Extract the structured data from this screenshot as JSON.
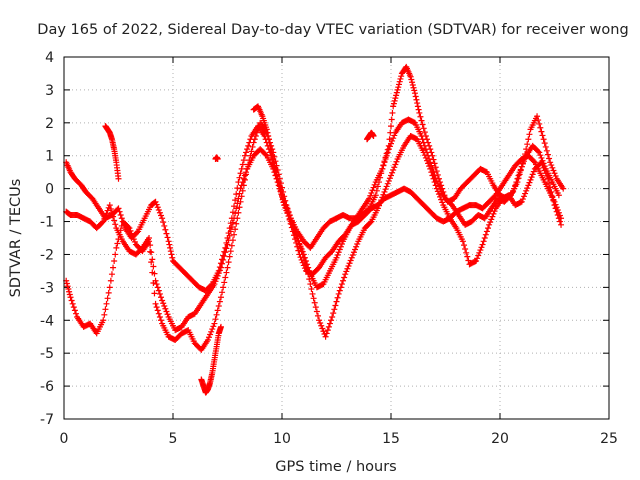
{
  "chart_data": {
    "type": "scatter",
    "title": "Day 165 of 2022, Sidereal Day-to-day VTEC variation (SDTVAR) for receiver wong",
    "xlabel": "GPS time / hours",
    "ylabel": "SDTVAR / TECUs",
    "xlim": [
      0,
      25
    ],
    "ylim": [
      -7,
      4
    ],
    "xticks": [
      "0",
      "5",
      "10",
      "15",
      "20",
      "25"
    ],
    "yticks": [
      "4",
      "3",
      "2",
      "1",
      "0",
      "-1",
      "-2",
      "-3",
      "-4",
      "-5",
      "-6",
      "-7"
    ],
    "grid": true,
    "marker": "+",
    "color": "#ff0000",
    "series": [
      {
        "x": [
          0.1,
          0.3,
          0.5,
          0.8,
          1.0,
          1.3,
          1.6,
          1.9,
          2.2,
          2.5,
          2.8,
          3.1,
          3.4,
          3.7,
          4.0,
          4.2,
          4.5,
          4.8,
          5.0,
          5.3,
          5.6,
          5.9,
          6.2,
          6.5,
          6.8,
          7.1,
          7.4,
          7.7,
          8.0,
          8.3,
          8.6,
          8.9,
          9.2,
          9.5,
          9.8,
          10.1,
          10.4,
          10.7,
          11.0,
          11.3,
          11.6,
          11.9,
          12.2,
          12.5,
          12.8,
          13.1,
          13.4,
          13.7,
          14.0,
          14.3,
          14.6,
          14.9,
          15.2,
          15.5,
          15.8,
          16.1,
          16.4,
          16.7,
          17.0,
          17.3,
          17.6,
          17.9,
          18.2,
          18.5,
          18.8,
          19.1,
          19.4,
          19.7,
          20.0,
          20.3,
          20.6,
          20.9,
          21.2,
          21.5,
          21.8,
          22.1,
          22.4,
          22.7
        ],
        "y": [
          0.8,
          0.5,
          0.3,
          0.1,
          -0.1,
          -0.3,
          -0.6,
          -0.9,
          -0.8,
          -0.6,
          -1.2,
          -1.5,
          -1.3,
          -0.9,
          -0.5,
          -0.4,
          -0.9,
          -1.6,
          -2.2,
          -2.4,
          -2.6,
          -2.8,
          -3.0,
          -3.1,
          -2.9,
          -2.5,
          -1.8,
          -0.9,
          0.2,
          1.0,
          1.6,
          1.9,
          1.6,
          1.0,
          0.3,
          -0.4,
          -0.9,
          -1.3,
          -1.6,
          -1.8,
          -1.5,
          -1.2,
          -1.0,
          -0.9,
          -0.8,
          -0.9,
          -0.9,
          -0.6,
          -0.3,
          0.2,
          0.6,
          1.2,
          1.7,
          2.0,
          2.1,
          2.0,
          1.6,
          1.0,
          0.4,
          -0.1,
          -0.4,
          -0.3,
          0.0,
          0.2,
          0.4,
          0.6,
          0.5,
          0.1,
          -0.2,
          -0.3,
          -0.1,
          0.5,
          1.0,
          1.3,
          1.1,
          0.6,
          0.2,
          -0.2
        ]
      },
      {
        "x": [
          0.1,
          0.3,
          0.6,
          0.9,
          1.2,
          1.5,
          1.8,
          2.1,
          2.4,
          2.7,
          3.0,
          3.3,
          3.6,
          3.9,
          4.2,
          4.5,
          4.8,
          5.1,
          5.4,
          5.7,
          6.0,
          6.3,
          6.6,
          6.9,
          7.2,
          7.5,
          7.8,
          8.1,
          8.4,
          8.7,
          9.0,
          9.3,
          9.6,
          9.9,
          10.2,
          10.5,
          10.8,
          11.1,
          11.4,
          11.7,
          12.0,
          12.3,
          12.6,
          12.9,
          13.2,
          13.5,
          13.8,
          14.1,
          14.4,
          14.7,
          15.0,
          15.3,
          15.6,
          15.9,
          16.2,
          16.5,
          16.8,
          17.1,
          17.4,
          17.7,
          18.0,
          18.3,
          18.6,
          18.9,
          19.2,
          19.5,
          19.8,
          20.1,
          20.4,
          20.7,
          21.0,
          21.3,
          21.6,
          21.9,
          22.2,
          22.5,
          22.8
        ],
        "y": [
          -0.7,
          -0.8,
          -0.8,
          -0.9,
          -1.0,
          -1.2,
          -1.0,
          -0.5,
          -1.2,
          -1.6,
          -1.9,
          -2.0,
          -1.8,
          -1.5,
          -2.8,
          -3.4,
          -3.9,
          -4.3,
          -4.2,
          -3.9,
          -3.8,
          -3.5,
          -3.2,
          -2.9,
          -2.4,
          -1.7,
          -0.9,
          0.0,
          0.6,
          1.0,
          1.2,
          1.0,
          0.6,
          0.0,
          -0.6,
          -1.3,
          -2.0,
          -2.5,
          -2.6,
          -2.4,
          -2.1,
          -1.9,
          -1.6,
          -1.4,
          -1.1,
          -1.0,
          -0.8,
          -0.6,
          -0.5,
          -0.3,
          -0.2,
          -0.1,
          0.0,
          -0.1,
          -0.3,
          -0.5,
          -0.7,
          -0.9,
          -1.0,
          -0.9,
          -0.7,
          -0.6,
          -0.5,
          -0.5,
          -0.6,
          -0.4,
          -0.2,
          0.1,
          0.4,
          0.7,
          0.9,
          1.0,
          0.8,
          0.4,
          0.0,
          -0.4,
          -0.9
        ]
      },
      {
        "x": [
          0.1,
          0.3,
          0.6,
          0.9,
          1.2,
          1.5,
          1.8,
          2.1,
          2.4,
          2.7,
          3.0,
          3.3,
          3.6,
          3.9,
          4.2,
          4.5,
          4.8,
          5.1,
          5.4,
          5.7,
          6.0,
          6.3,
          6.6,
          6.9,
          7.2,
          7.5,
          7.8,
          8.1,
          8.4,
          8.7,
          9.0,
          9.3,
          9.6,
          9.9,
          10.2,
          10.5,
          10.8,
          11.1,
          11.4,
          11.7,
          12.0,
          12.3,
          12.6,
          12.9,
          13.2,
          13.5,
          13.8,
          14.1,
          14.4,
          14.7,
          15.0,
          15.3,
          15.6,
          15.9,
          16.2,
          16.5,
          16.8,
          17.1,
          17.4,
          17.7,
          18.0,
          18.3,
          18.6,
          18.9,
          19.2,
          19.5,
          19.8,
          20.1,
          20.4,
          20.7,
          21.0,
          21.3,
          21.6,
          21.9,
          22.2,
          22.5,
          22.8
        ],
        "y": [
          -2.8,
          -3.3,
          -3.9,
          -4.2,
          -4.1,
          -4.4,
          -4.0,
          -3.0,
          -1.8,
          -1.0,
          -1.2,
          -1.7,
          -1.9,
          -1.6,
          -3.5,
          -4.1,
          -4.5,
          -4.6,
          -4.4,
          -4.3,
          -4.7,
          -4.9,
          -4.6,
          -4.1,
          -3.3,
          -2.4,
          -1.4,
          -0.4,
          0.6,
          1.4,
          2.0,
          1.7,
          1.1,
          0.3,
          -0.5,
          -1.1,
          -1.7,
          -2.3,
          -3.2,
          -4.0,
          -4.5,
          -3.9,
          -3.2,
          -2.6,
          -2.1,
          -1.6,
          -1.2,
          -1.0,
          -0.6,
          -0.1,
          0.4,
          0.9,
          1.3,
          1.6,
          1.5,
          1.1,
          0.6,
          0.0,
          -0.5,
          -0.9,
          -1.2,
          -1.6,
          -2.3,
          -2.2,
          -1.7,
          -1.1,
          -0.6,
          -0.3,
          -0.2,
          -0.5,
          -0.4,
          0.1,
          0.6,
          0.8,
          0.3,
          -0.5,
          -1.1
        ]
      },
      {
        "x": [
          8.7,
          8.9,
          9.1,
          9.3,
          9.5,
          9.7,
          9.9,
          10.1,
          10.4,
          10.7,
          11.0,
          11.3,
          11.6,
          11.9,
          12.2,
          12.5,
          12.8,
          13.1,
          13.4,
          13.7,
          14.0,
          14.3,
          14.6,
          14.9,
          15.1,
          15.3,
          15.5,
          15.7,
          15.9,
          16.1,
          16.3,
          16.6,
          16.9,
          17.2,
          17.5,
          17.8,
          18.1,
          18.4,
          18.7,
          19.0,
          19.3,
          19.6,
          19.9,
          20.2,
          20.5,
          20.8,
          21.1,
          21.4,
          21.7,
          22.0,
          22.3,
          22.6,
          22.9
        ],
        "y": [
          2.4,
          2.5,
          2.2,
          1.8,
          1.2,
          0.6,
          0.0,
          -0.5,
          -1.0,
          -1.5,
          -2.0,
          -2.6,
          -3.0,
          -2.9,
          -2.5,
          -2.1,
          -1.6,
          -1.2,
          -0.9,
          -0.8,
          -0.6,
          -0.2,
          0.6,
          1.3,
          2.5,
          3.0,
          3.5,
          3.7,
          3.4,
          2.9,
          2.3,
          1.6,
          1.0,
          0.3,
          -0.3,
          -0.5,
          -0.8,
          -1.1,
          -1.0,
          -0.8,
          -0.9,
          -0.6,
          -0.3,
          -0.4,
          -0.2,
          0.2,
          0.9,
          1.8,
          2.2,
          1.5,
          0.8,
          0.3,
          0.0
        ]
      }
    ],
    "extras": [
      {
        "x": [
          6.3,
          6.4,
          6.5,
          6.6,
          6.7,
          6.8,
          6.9,
          7.0,
          7.1,
          7.2
        ],
        "y": [
          -5.8,
          -6.0,
          -6.2,
          -6.1,
          -5.9,
          -5.6,
          -5.2,
          -4.8,
          -4.4,
          -4.2
        ]
      },
      {
        "x": [
          1.9,
          2.0,
          2.1,
          2.2,
          2.3,
          2.4,
          2.5
        ],
        "y": [
          1.9,
          1.8,
          1.7,
          1.5,
          1.2,
          0.8,
          0.3
        ]
      },
      {
        "x": [
          6.95,
          7.0,
          7.05
        ],
        "y": [
          0.9,
          0.95,
          0.9
        ]
      },
      {
        "x": [
          13.9,
          14.0,
          14.1,
          14.2
        ],
        "y": [
          1.5,
          1.6,
          1.7,
          1.6
        ]
      }
    ]
  }
}
